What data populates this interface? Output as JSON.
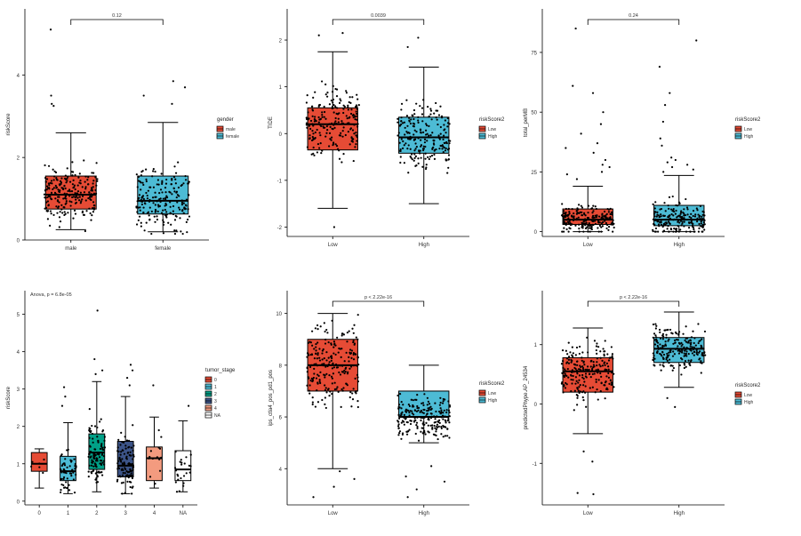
{
  "colors": {
    "red": "#E64B35",
    "blue": "#4DBBD5",
    "teal": "#00A087",
    "navy": "#3C5488",
    "salmon": "#F39B7F",
    "white": "#FFFFFF",
    "axis": "#000000"
  },
  "chart_data": [
    {
      "type": "boxplot",
      "ylabel": "riskScore",
      "xlabel": "",
      "ylim": [
        0,
        5.3
      ],
      "yticks": [
        0,
        2,
        4
      ],
      "categories": [
        "male",
        "female"
      ],
      "boxes": [
        {
          "min": 0.25,
          "q1": 0.75,
          "median": 1.1,
          "q3": 1.55,
          "max": 2.6,
          "color": "red"
        },
        {
          "min": 0.2,
          "q1": 0.63,
          "median": 0.95,
          "q3": 1.55,
          "max": 2.85,
          "color": "blue"
        }
      ],
      "points": [
        {
          "n": 230,
          "range": [
            0.2,
            3.6
          ],
          "outliers": [
            5.1,
            3.5,
            3.3,
            3.25
          ]
        },
        {
          "n": 200,
          "range": [
            0.15,
            3.3
          ],
          "outliers": [
            3.85,
            3.7,
            3.5,
            3.3
          ]
        }
      ],
      "annotation": {
        "text": "0.12",
        "pair": [
          0,
          1
        ],
        "y": 5.6
      },
      "legend": {
        "title": "gender",
        "position": "right",
        "items": [
          {
            "label": "male",
            "color": "red"
          },
          {
            "label": "female",
            "color": "blue"
          }
        ]
      }
    },
    {
      "type": "boxplot",
      "ylabel": "TIDE",
      "xlabel": "",
      "ylim": [
        -2.2,
        2.4
      ],
      "yticks": [
        -2,
        -1,
        0,
        1,
        2
      ],
      "categories": [
        "Low",
        "High"
      ],
      "boxes": [
        {
          "min": -1.6,
          "q1": -0.35,
          "median": 0.2,
          "q3": 0.55,
          "max": 1.75,
          "color": "red"
        },
        {
          "min": -1.5,
          "q1": -0.42,
          "median": -0.08,
          "q3": 0.35,
          "max": 1.42,
          "color": "blue"
        }
      ],
      "points": [
        {
          "n": 210,
          "range": [
            -1.8,
            2.0
          ],
          "outliers": [
            -2.0,
            2.15,
            2.1
          ]
        },
        {
          "n": 210,
          "range": [
            -1.55,
            1.8
          ],
          "outliers": [
            2.05,
            1.85
          ]
        }
      ],
      "annotation": {
        "text": "0.0039",
        "pair": [
          0,
          1
        ],
        "y": 2.45
      },
      "legend": {
        "title": "riskScore2",
        "position": "right",
        "items": [
          {
            "label": "Low",
            "color": "red"
          },
          {
            "label": "High",
            "color": "blue"
          }
        ]
      }
    },
    {
      "type": "boxplot",
      "ylabel": "total_perMB",
      "xlabel": "",
      "ylim": [
        -2,
        88
      ],
      "yticks": [
        0,
        25,
        50,
        75
      ],
      "categories": [
        "Low",
        "High"
      ],
      "boxes": [
        {
          "min": 0,
          "q1": 3,
          "median": 5,
          "q3": 9.5,
          "max": 19,
          "color": "red"
        },
        {
          "min": 0,
          "q1": 2.5,
          "median": 5,
          "q3": 11,
          "max": 23.5,
          "color": "blue"
        }
      ],
      "points": [
        {
          "n": 200,
          "range": [
            0,
            20
          ],
          "outliers": [
            85,
            61,
            58,
            50,
            45,
            41,
            37,
            35,
            33,
            30,
            28,
            27,
            25,
            24,
            22
          ]
        },
        {
          "n": 200,
          "range": [
            0,
            24
          ],
          "outliers": [
            80,
            69,
            58,
            53,
            46,
            39,
            36,
            31,
            30,
            29,
            28,
            27,
            26,
            25
          ]
        }
      ],
      "annotation": {
        "text": "0.24",
        "pair": [
          0,
          1
        ],
        "y": 90
      },
      "legend": {
        "title": "riskScore2",
        "position": "right",
        "items": [
          {
            "label": "Low",
            "color": "red"
          },
          {
            "label": "High",
            "color": "blue"
          }
        ]
      }
    },
    {
      "type": "boxplot",
      "ylabel": "riskScore",
      "xlabel": "",
      "ylim": [
        -0.1,
        5.3
      ],
      "yticks": [
        0,
        1,
        2,
        3,
        4,
        5
      ],
      "categories": [
        "0",
        "1",
        "2",
        "3",
        "4",
        "NA"
      ],
      "boxes": [
        {
          "min": 0.35,
          "q1": 0.8,
          "median": 1.0,
          "q3": 1.3,
          "max": 1.4,
          "color": "red"
        },
        {
          "min": 0.2,
          "q1": 0.55,
          "median": 0.8,
          "q3": 1.2,
          "max": 2.1,
          "color": "blue"
        },
        {
          "min": 0.25,
          "q1": 0.85,
          "median": 1.3,
          "q3": 1.8,
          "max": 3.2,
          "color": "teal"
        },
        {
          "min": 0.2,
          "q1": 0.65,
          "median": 0.95,
          "q3": 1.6,
          "max": 2.8,
          "color": "navy"
        },
        {
          "min": 0.35,
          "q1": 0.55,
          "median": 1.15,
          "q3": 1.45,
          "max": 2.25,
          "color": "salmon"
        },
        {
          "min": 0.25,
          "q1": 0.55,
          "median": 0.85,
          "q3": 1.35,
          "max": 2.15,
          "color": "white"
        }
      ],
      "points": [
        {
          "n": 6,
          "range": [
            0.4,
            1.35
          ],
          "outliers": []
        },
        {
          "n": 55,
          "range": [
            0.2,
            2.1
          ],
          "outliers": [
            3.05,
            2.8,
            2.55
          ]
        },
        {
          "n": 110,
          "range": [
            0.25,
            3.2
          ],
          "outliers": [
            5.1,
            3.8,
            3.5,
            3.4
          ]
        },
        {
          "n": 110,
          "range": [
            0.2,
            2.8
          ],
          "outliers": [
            3.65,
            3.5,
            3.3,
            3.1
          ]
        },
        {
          "n": 14,
          "range": [
            0.35,
            2.25
          ],
          "outliers": [
            3.1
          ]
        },
        {
          "n": 24,
          "range": [
            0.25,
            2.1
          ],
          "outliers": [
            2.55
          ]
        }
      ],
      "text_annotation": {
        "text": "Anova, p = 6.8e-05"
      },
      "legend": {
        "title": "tumor_stage",
        "position": "right",
        "items": [
          {
            "label": "0",
            "color": "red"
          },
          {
            "label": "1",
            "color": "blue"
          },
          {
            "label": "2",
            "color": "teal"
          },
          {
            "label": "3",
            "color": "navy"
          },
          {
            "label": "4",
            "color": "salmon"
          },
          {
            "label": "NA",
            "color": "white"
          }
        ]
      }
    },
    {
      "type": "boxplot",
      "ylabel": "ips_ctla4_pos_pd1_pos",
      "xlabel": "",
      "ylim": [
        2.6,
        10.4
      ],
      "yticks": [
        4,
        6,
        8,
        10
      ],
      "categories": [
        "Low",
        "High"
      ],
      "boxes": [
        {
          "min": 4.0,
          "q1": 7.0,
          "median": 8.0,
          "q3": 9.0,
          "max": 10.0,
          "color": "red"
        },
        {
          "min": 5.0,
          "q1": 6.0,
          "median": 6.0,
          "q3": 7.0,
          "max": 8.0,
          "color": "blue"
        }
      ],
      "points": [
        {
          "n": 220,
          "range": [
            4.0,
            10.3
          ],
          "outliers": [
            2.9,
            3.3,
            3.6,
            3.9
          ]
        },
        {
          "n": 220,
          "range": [
            4.5,
            9.3
          ],
          "outliers": [
            2.9,
            3.2,
            3.5,
            3.7,
            4.1
          ]
        }
      ],
      "annotation": {
        "text": "p < 2.22e-16",
        "pair": [
          0,
          1
        ],
        "y": 10.5
      },
      "legend": {
        "title": "riskScore2",
        "position": "right",
        "items": [
          {
            "label": "Low",
            "color": "red"
          },
          {
            "label": "High",
            "color": "blue"
          }
        ]
      }
    },
    {
      "type": "boxplot",
      "ylabel": "predictedPhype.AP_24534",
      "xlabel": "",
      "ylim": [
        -1.7,
        1.7
      ],
      "yticks": [
        -1,
        0,
        1
      ],
      "categories": [
        "Low",
        "High"
      ],
      "boxes": [
        {
          "min": -0.5,
          "q1": 0.2,
          "median": 0.55,
          "q3": 0.78,
          "max": 1.28,
          "color": "red"
        },
        {
          "min": 0.28,
          "q1": 0.7,
          "median": 0.93,
          "q3": 1.12,
          "max": 1.55,
          "color": "blue"
        }
      ],
      "points": [
        {
          "n": 220,
          "range": [
            -0.5,
            1.3
          ],
          "outliers": [
            -0.8,
            -0.97,
            -1.5,
            -1.52
          ]
        },
        {
          "n": 210,
          "range": [
            0.3,
            1.55
          ],
          "outliers": [
            -0.05,
            0.1
          ]
        }
      ],
      "annotation": {
        "text": "p < 2.22e-16",
        "pair": [
          0,
          1
        ],
        "y": 1.75
      },
      "legend": {
        "title": "riskScore2",
        "position": "right",
        "items": [
          {
            "label": "Low",
            "color": "red"
          },
          {
            "label": "High",
            "color": "blue"
          }
        ]
      }
    }
  ]
}
